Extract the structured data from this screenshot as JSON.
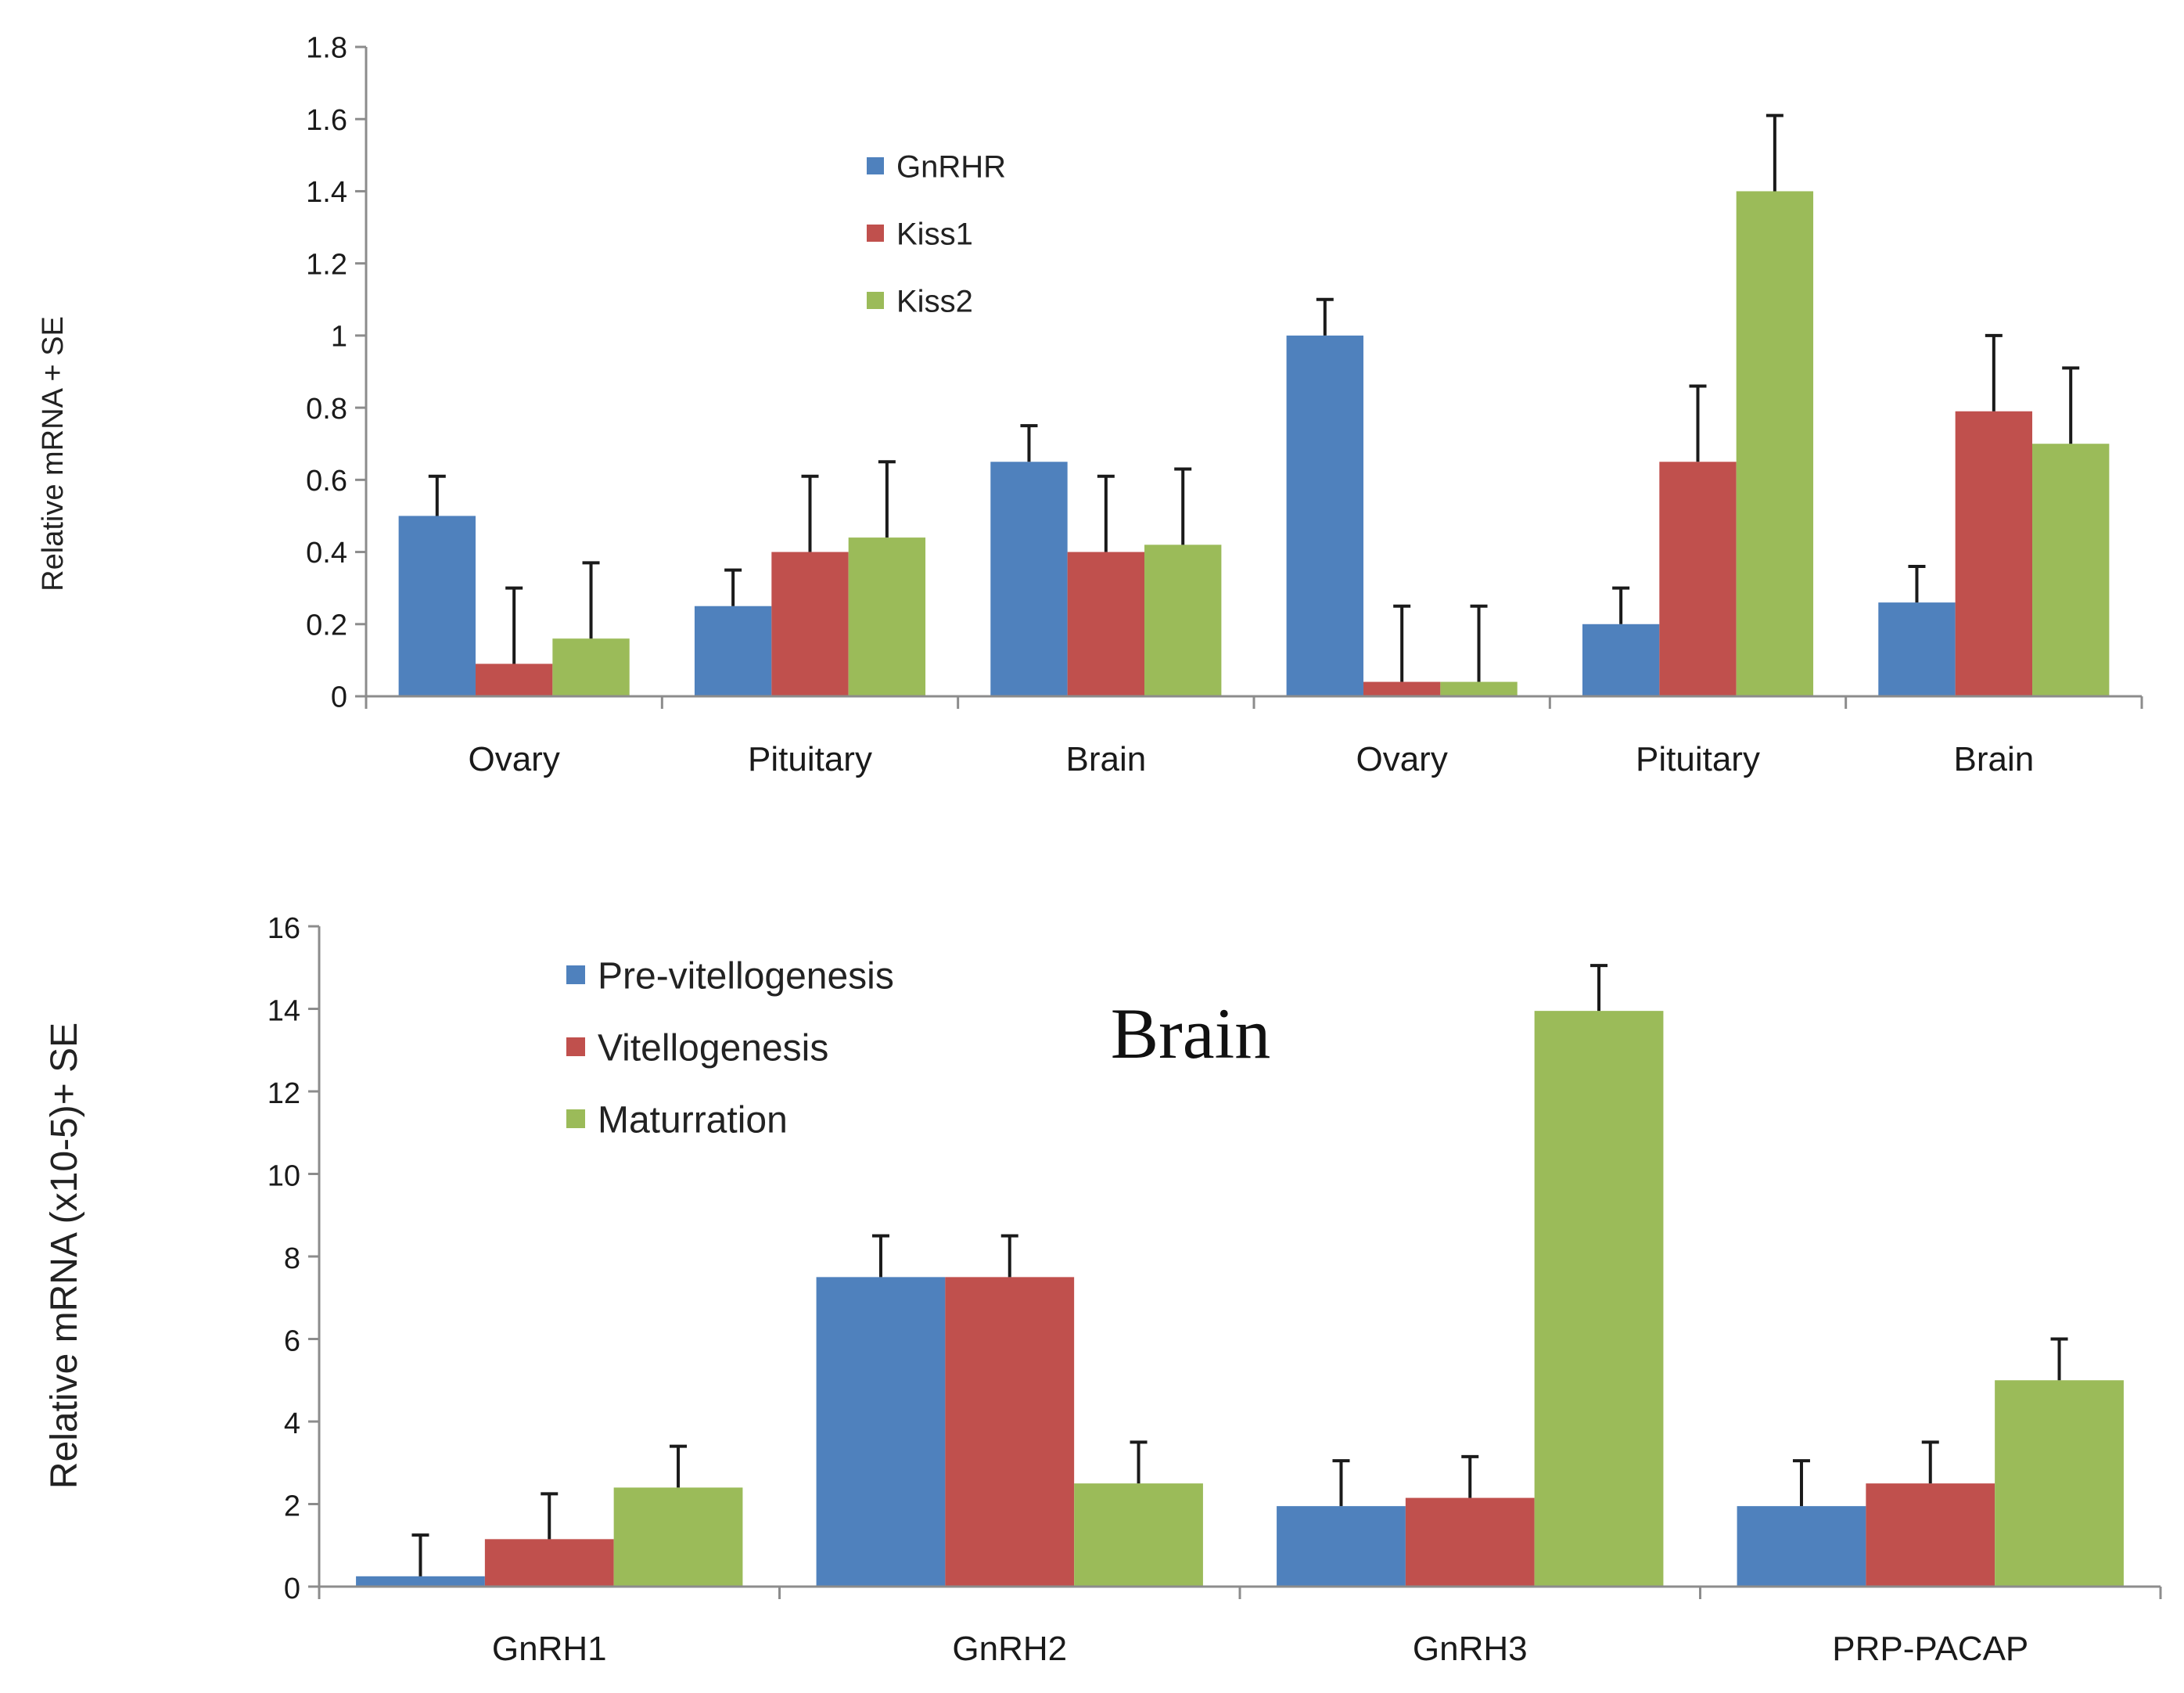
{
  "chart_data": [
    {
      "type": "bar",
      "title": "",
      "xlabel": "",
      "ylabel": "Relative mRNA + SE",
      "ylim": [
        0,
        1.8
      ],
      "yticks": [
        "0",
        "0.2",
        "0.4",
        "0.6",
        "0.8",
        "1",
        "1.2",
        "1.4",
        "1.6",
        "1.8"
      ],
      "categories": [
        "Ovary",
        "Pituitary",
        "Brain",
        "Ovary",
        "Pituitary",
        "Brain"
      ],
      "legend_position": "top-center",
      "series": [
        {
          "name": "GnRHR",
          "color": "#4F81BD",
          "values": [
            0.5,
            0.25,
            0.65,
            1.0,
            0.2,
            0.26
          ],
          "errors": [
            0.11,
            0.1,
            0.1,
            0.1,
            0.1,
            0.1
          ]
        },
        {
          "name": "Kiss1",
          "color": "#C0504D",
          "values": [
            0.09,
            0.4,
            0.4,
            0.04,
            0.65,
            0.79
          ],
          "errors": [
            0.21,
            0.21,
            0.21,
            0.21,
            0.21,
            0.21
          ]
        },
        {
          "name": "Kiss2",
          "color": "#9BBB59",
          "values": [
            0.16,
            0.44,
            0.42,
            0.04,
            1.4,
            0.7
          ],
          "errors": [
            0.21,
            0.21,
            0.21,
            0.21,
            0.21,
            0.21
          ]
        }
      ]
    },
    {
      "type": "bar",
      "title": "Brain",
      "xlabel": "",
      "ylabel": "Relative mRNA (x10-5)+ SE",
      "ylim": [
        0,
        16
      ],
      "yticks": [
        "0",
        "2",
        "4",
        "6",
        "8",
        "10",
        "12",
        "14",
        "16"
      ],
      "categories": [
        "GnRH1",
        "GnRH2",
        "GnRH3",
        "PRP-PACAP"
      ],
      "legend_position": "top-left",
      "series": [
        {
          "name": "Pre-vitellogenesis",
          "color": "#4F81BD",
          "values": [
            0.25,
            7.5,
            1.95,
            1.95
          ],
          "errors": [
            1.0,
            1.0,
            1.1,
            1.1
          ]
        },
        {
          "name": "Vitellogenesis",
          "color": "#C0504D",
          "values": [
            1.15,
            7.5,
            2.15,
            2.5
          ],
          "errors": [
            1.1,
            1.0,
            1.0,
            1.0
          ]
        },
        {
          "name": "Maturration",
          "color": "#9BBB59",
          "values": [
            2.4,
            2.5,
            13.95,
            5.0
          ],
          "errors": [
            1.0,
            1.0,
            1.1,
            1.0
          ]
        }
      ]
    }
  ]
}
